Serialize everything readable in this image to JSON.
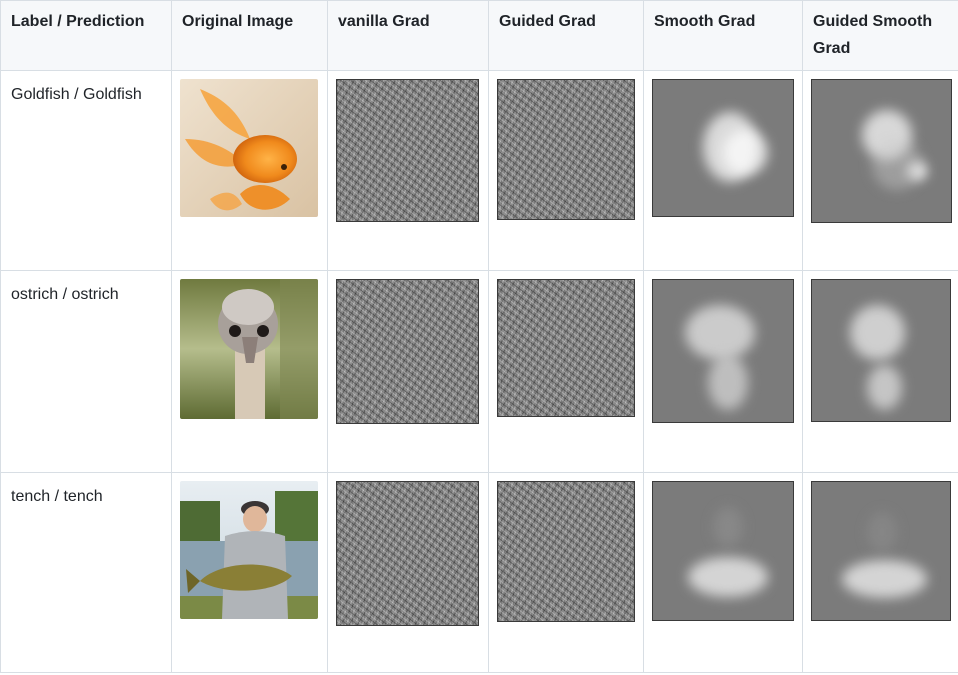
{
  "table": {
    "headers": [
      "Label / Prediction",
      "Original Image",
      "vanilla Grad",
      "Guided Grad",
      "Smooth Grad",
      "Guided Smooth Grad"
    ],
    "rows": [
      {
        "label": "Goldfish / Goldfish",
        "photo": "goldfish photo"
      },
      {
        "label": "ostrich / ostrich",
        "photo": "ostrich photo"
      },
      {
        "label": "tench / tench",
        "photo": "man holding tench fish photo"
      }
    ]
  },
  "colors": {
    "header_bg": "#f6f8fa",
    "border": "#d8dee4",
    "text": "#1f2328",
    "map_gray": "#7b7b7b"
  }
}
